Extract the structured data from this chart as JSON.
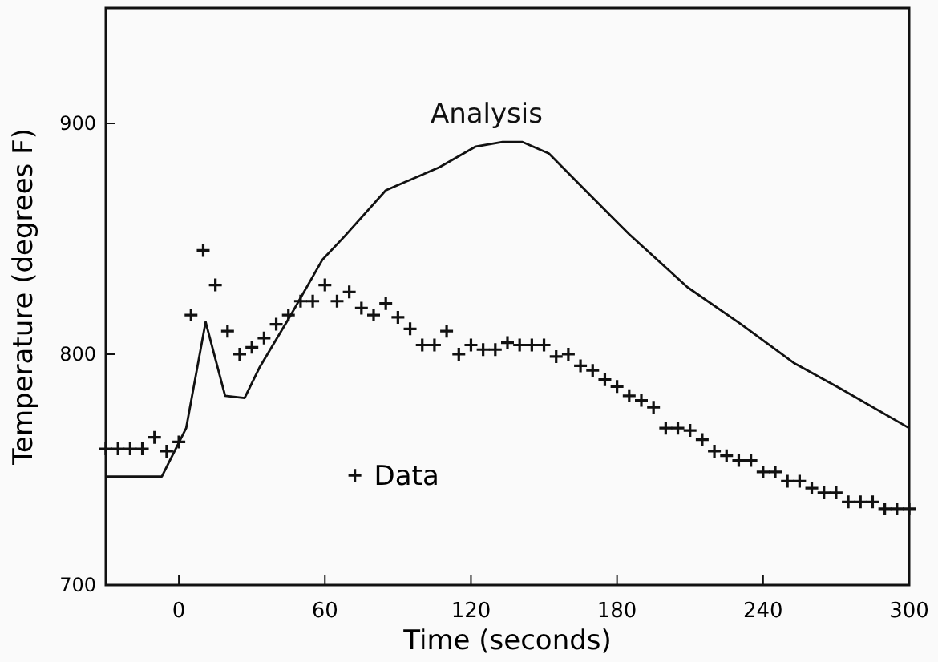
{
  "chart_data": {
    "type": "scatter",
    "xlabel": "Time (seconds)",
    "ylabel": "Temperature (degrees F)",
    "xlim": [
      -30,
      300
    ],
    "xticks": [
      0,
      60,
      120,
      180,
      240,
      300
    ],
    "ylim": [
      700,
      950
    ],
    "yticks": [
      700,
      800,
      900
    ],
    "grid": false,
    "legend": "bottom left",
    "series": [
      {
        "name": "Data",
        "marker": "cross",
        "color": "#111111",
        "x": [
          -30,
          -25,
          -20,
          -15,
          -10,
          -5,
          0,
          5,
          10,
          15,
          20,
          25,
          30,
          35,
          40,
          45,
          50,
          55,
          60,
          65,
          70,
          75,
          80,
          85,
          90,
          95,
          100,
          105,
          110,
          115,
          120,
          125,
          130,
          135,
          140,
          145,
          150,
          155,
          160,
          165,
          170,
          175,
          180,
          185,
          190,
          195,
          200,
          205,
          210,
          215,
          220,
          225,
          230,
          235,
          240,
          245,
          250,
          255,
          260,
          265,
          270,
          275,
          280,
          285,
          290,
          295,
          300
        ],
        "values": [
          759,
          759,
          759,
          759,
          764,
          758,
          762,
          817,
          845,
          830,
          810,
          800,
          803,
          807,
          813,
          817,
          823,
          823,
          830,
          823,
          827,
          820,
          817,
          822,
          816,
          811,
          804,
          804,
          810,
          800,
          804,
          802,
          802,
          805,
          804,
          804,
          804,
          799,
          800,
          795,
          793,
          789,
          786,
          782,
          780,
          777,
          768,
          768,
          767,
          763,
          758,
          756,
          754,
          754,
          749,
          749,
          745,
          745,
          742,
          740,
          740,
          736,
          736,
          736,
          733,
          733,
          733
        ]
      },
      {
        "name": "Analysis",
        "type": "line",
        "marker": "none",
        "line_style": "solid",
        "color": "#111111",
        "x": [
          -30,
          -7,
          3,
          11,
          19,
          27,
          33,
          46,
          59,
          68,
          85,
          107,
          122,
          133,
          141,
          152,
          167,
          185,
          209,
          231,
          253,
          272,
          300
        ],
        "values": [
          747,
          747,
          768,
          814,
          782,
          781,
          794,
          817,
          841,
          851,
          871,
          881,
          890,
          892,
          892,
          887,
          871,
          852,
          829,
          813,
          796,
          785,
          768
        ]
      }
    ]
  }
}
